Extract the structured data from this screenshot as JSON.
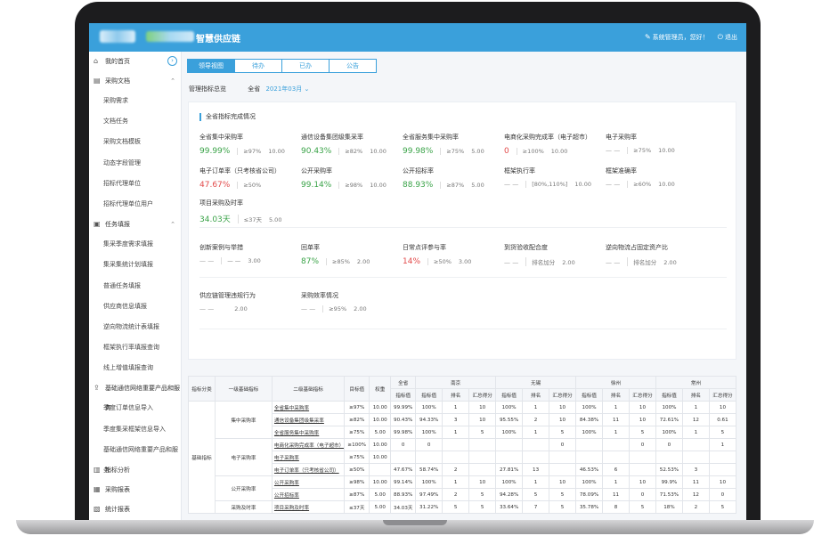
{
  "header": {
    "app_title": "智慧供应链",
    "user_greeting": "系统管理员，您好！",
    "logout": "退出"
  },
  "sidebar": {
    "items": [
      {
        "label": "我的首页",
        "icon": "home-icon",
        "children": []
      },
      {
        "label": "采购文档",
        "icon": "document-icon",
        "children": [
          "采购需求",
          "文档任务",
          "采购文档模板",
          "动态字段管理",
          "招标代理单位",
          "招标代理单位用户"
        ]
      },
      {
        "label": "任务填报",
        "icon": "task-icon",
        "children": [
          "集采季度需求填报",
          "集采集统计划填报",
          "普通任务填报",
          "供应商信息填报",
          "逆向物流统计表填报",
          "框架执行率填报查询",
          "线上增值填报查询"
        ]
      },
      {
        "label": "基础通信网络重要产品和服务",
        "icon": "share-icon",
        "children": [
          "季度订单信息导入",
          "季度集采框架信息导入",
          "基础通信网络重要产品和服务"
        ]
      },
      {
        "label": "指标分析",
        "icon": "chart-icon",
        "children": []
      },
      {
        "label": "采购报表",
        "icon": "report-icon",
        "children": []
      },
      {
        "label": "统计报表",
        "icon": "stats-icon",
        "children": []
      }
    ]
  },
  "tabs": [
    "领导视图",
    "待办",
    "已办",
    "公告"
  ],
  "filter": {
    "label": "管理指标总览",
    "scope": "全省",
    "month": "2021年03月"
  },
  "overview": {
    "title": "全省指标完成情况",
    "rows": [
      [
        {
          "name": "全省集中采购率",
          "value": "99.99%",
          "color": "green",
          "target": "≥97%",
          "weight": "10.00"
        },
        {
          "name": "通信设备集团级集采率",
          "value": "90.43%",
          "color": "green",
          "target": "≥82%",
          "weight": "10.00"
        },
        {
          "name": "全省服务集中采购率",
          "value": "99.98%",
          "color": "green",
          "target": "≥75%",
          "weight": "5.00"
        },
        {
          "name": "电商化采购完成率（电子超市）",
          "value": "0",
          "color": "red",
          "target": "≥100%",
          "weight": "10.00"
        },
        {
          "name": "电子采购率",
          "value": "— —",
          "color": "dash",
          "target": "≥75%",
          "weight": "10.00"
        }
      ],
      [
        {
          "name": "电子订单率（只考核省公司）",
          "value": "47.67%",
          "color": "red",
          "target": "≥50%",
          "weight": ""
        },
        {
          "name": "公开采购率",
          "value": "99.14%",
          "color": "green",
          "target": "≥98%",
          "weight": "10.00"
        },
        {
          "name": "公开招标率",
          "value": "88.93%",
          "color": "green",
          "target": "≥87%",
          "weight": "5.00"
        },
        {
          "name": "框架执行率",
          "value": "— —",
          "color": "dash",
          "target": "[80%,110%]",
          "weight": "10.00"
        },
        {
          "name": "框架准确率",
          "value": "— —",
          "color": "dash",
          "target": "≥60%",
          "weight": "10.00"
        }
      ],
      [
        {
          "name": "项目采购及时率",
          "value": "34.03天",
          "color": "green",
          "target": "≤37天",
          "weight": "5.00"
        }
      ],
      [
        {
          "name": "创新案例与举措",
          "value": "— —",
          "color": "dash",
          "target": "— —",
          "weight": "3.00"
        },
        {
          "name": "回单率",
          "value": "87%",
          "color": "green",
          "target": "≥85%",
          "weight": "2.00"
        },
        {
          "name": "日常点评参与率",
          "value": "14%",
          "color": "red",
          "target": "≥50%",
          "weight": "3.00"
        },
        {
          "name": "到货验收配合度",
          "value": "— —",
          "color": "dash",
          "target": "排名加分",
          "weight": "2.00"
        },
        {
          "name": "逆向物流占固定资产比",
          "value": "— —",
          "color": "dash",
          "target": "排名加分",
          "weight": "2.00"
        }
      ],
      [
        {
          "name": "供应链管理违规行为",
          "value": "— —",
          "color": "dash",
          "target": "",
          "weight": "2.00"
        },
        {
          "name": "采购效率情况",
          "value": "— —",
          "color": "dash",
          "target": "≥95%",
          "weight": "2.00"
        }
      ]
    ]
  },
  "table": {
    "h_category": "指标分类",
    "h_level1": "一级基础指标",
    "h_level2": "二级基础指标",
    "h_target": "目标值",
    "h_weight": "权重",
    "h_province": "全省",
    "cities": [
      "南京",
      "无锡",
      "徐州",
      "常州"
    ],
    "sub_headers": [
      "指标值",
      "排名",
      "汇总得分"
    ],
    "category": "基础指标",
    "rows": [
      {
        "l1": "集中采购率",
        "l2": "全省集中采购率",
        "target": "≥97%",
        "weight": "10.00",
        "prov": "99.99%",
        "c": [
          [
            "100%",
            "1",
            "10"
          ],
          [
            "100%",
            "1",
            "10"
          ],
          [
            "100%",
            "1",
            "10"
          ],
          [
            "100%",
            "1",
            "10"
          ]
        ]
      },
      {
        "l1": "",
        "l2": "通信设备集团级集采率",
        "target": "≥82%",
        "weight": "10.00",
        "prov": "90.43%",
        "c": [
          [
            "94.33%",
            "3",
            "10"
          ],
          [
            "95.55%",
            "2",
            "10"
          ],
          [
            "84.38%",
            "11",
            "10"
          ],
          [
            "72.61%",
            "12",
            "0.61"
          ]
        ]
      },
      {
        "l1": "",
        "l2": "全省服务集中采购率",
        "target": "≥75%",
        "weight": "5.00",
        "prov": "99.98%",
        "c": [
          [
            "100%",
            "1",
            "5"
          ],
          [
            "100%",
            "1",
            "5"
          ],
          [
            "100%",
            "1",
            "5"
          ],
          [
            "100%",
            "1",
            "5"
          ]
        ]
      },
      {
        "l1": "电子采购率",
        "l2": "电商化采购完成率（电子超市）",
        "target": "≥100%",
        "weight": "10.00",
        "prov": "0",
        "c": [
          [
            "0",
            "",
            ""
          ],
          [
            "",
            "",
            "0"
          ],
          [
            "",
            "",
            "0"
          ],
          [
            "0",
            "",
            "1"
          ]
        ]
      },
      {
        "l1": "",
        "l2": "电子采购率",
        "target": "≥75%",
        "weight": "10.00",
        "prov": "",
        "c": [
          [
            "",
            "",
            ""
          ],
          [
            "",
            "",
            ""
          ],
          [
            "",
            "",
            ""
          ],
          [
            "",
            "",
            ""
          ]
        ]
      },
      {
        "l1": "",
        "l2": "电子订单率（只考核省公司）",
        "target": "≥50%",
        "weight": "",
        "prov": "47.67%",
        "c": [
          [
            "58.74%",
            "2",
            ""
          ],
          [
            "27.81%",
            "13",
            ""
          ],
          [
            "46.53%",
            "6",
            ""
          ],
          [
            "52.53%",
            "3",
            ""
          ]
        ]
      },
      {
        "l1": "公开采购率",
        "l2": "公开采购率",
        "target": "≥98%",
        "weight": "10.00",
        "prov": "99.14%",
        "c": [
          [
            "100%",
            "1",
            "10"
          ],
          [
            "100%",
            "1",
            "10"
          ],
          [
            "100%",
            "1",
            "10"
          ],
          [
            "99.9%",
            "11",
            "10"
          ]
        ]
      },
      {
        "l1": "",
        "l2": "公开招标率",
        "target": "≥87%",
        "weight": "5.00",
        "prov": "88.93%",
        "c": [
          [
            "97.49%",
            "2",
            "5"
          ],
          [
            "94.28%",
            "5",
            "5"
          ],
          [
            "78.09%",
            "11",
            "0"
          ],
          [
            "71.53%",
            "12",
            "0"
          ]
        ]
      },
      {
        "l1": "采购及时率",
        "l2": "项目采购及时率",
        "target": "≤37天",
        "weight": "5.00",
        "prov": "34.03天",
        "c": [
          [
            "31.22%",
            "5",
            "5"
          ],
          [
            "33.64%",
            "7",
            "5"
          ],
          [
            "35.78%",
            "8",
            "5"
          ],
          [
            "18%",
            "2",
            "5"
          ]
        ]
      }
    ]
  }
}
